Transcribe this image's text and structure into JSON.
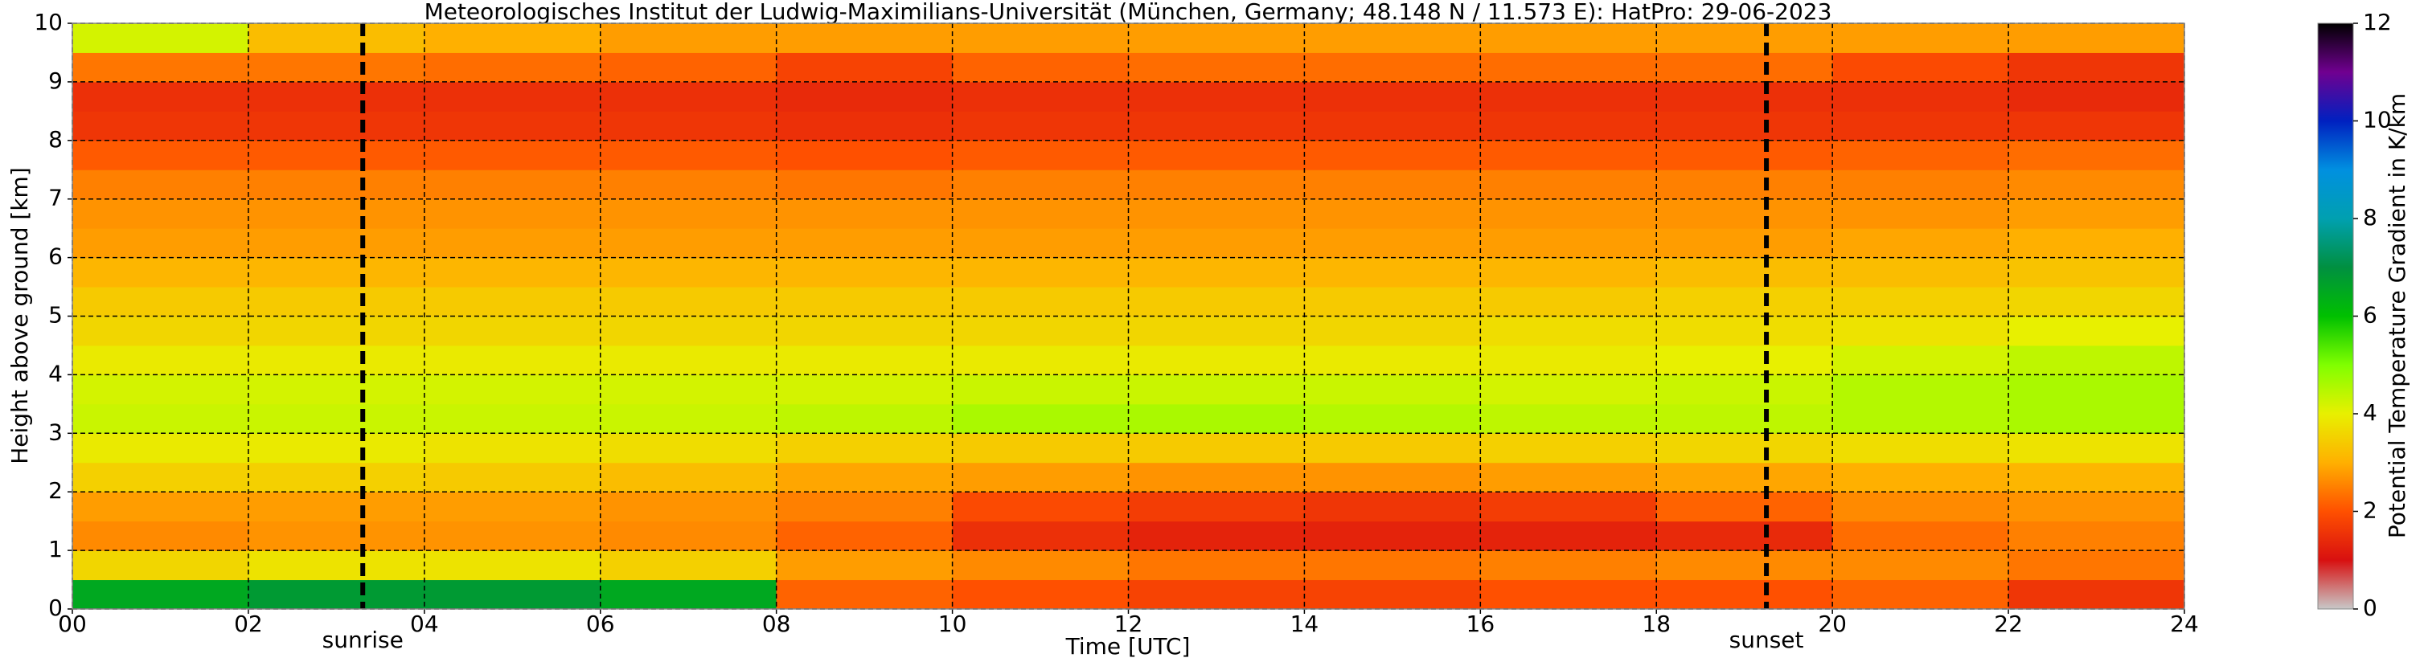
{
  "chart_data": {
    "type": "heatmap",
    "title": "Meteorologisches Institut der Ludwig-Maximilians-Universität (München, Germany; 48.148 N / 11.573 E):    HatPro: 29-06-2023",
    "xlabel": "Time [UTC]",
    "ylabel": "Height above ground [km]",
    "colorbar_label": "Potential Temperature Gradient in K/km",
    "x_edges": [
      0,
      2,
      4,
      6,
      8,
      10,
      12,
      14,
      16,
      18,
      20,
      22,
      24
    ],
    "y_edges": [
      0,
      0.5,
      1,
      1.5,
      2,
      2.5,
      3,
      3.5,
      4,
      4.5,
      5,
      5.5,
      6,
      6.5,
      7,
      7.5,
      8,
      8.5,
      9,
      9.5,
      10
    ],
    "z": [
      [
        6.5,
        6.8,
        6.8,
        6.5,
        2.2,
        2.0,
        1.8,
        1.8,
        2.0,
        2.0,
        2.2,
        1.6
      ],
      [
        3.6,
        3.8,
        3.8,
        3.5,
        2.8,
        2.6,
        2.4,
        2.4,
        2.5,
        2.6,
        2.6,
        2.4
      ],
      [
        2.6,
        2.7,
        2.7,
        2.6,
        2.2,
        1.5,
        1.3,
        1.3,
        1.3,
        1.4,
        2.3,
        2.5
      ],
      [
        2.8,
        2.8,
        2.8,
        2.7,
        2.5,
        1.9,
        1.7,
        1.6,
        1.7,
        2.2,
        2.6,
        2.7
      ],
      [
        3.5,
        3.5,
        3.4,
        3.2,
        2.9,
        2.8,
        2.7,
        2.7,
        2.8,
        2.9,
        3.0,
        3.1
      ],
      [
        3.9,
        3.9,
        3.8,
        3.7,
        3.5,
        3.4,
        3.4,
        3.4,
        3.5,
        3.6,
        3.7,
        3.8
      ],
      [
        4.3,
        4.3,
        4.3,
        4.3,
        4.4,
        4.6,
        4.6,
        4.5,
        4.4,
        4.4,
        4.5,
        4.6
      ],
      [
        4.2,
        4.2,
        4.2,
        4.2,
        4.2,
        4.3,
        4.3,
        4.3,
        4.2,
        4.3,
        4.5,
        4.6
      ],
      [
        3.9,
        3.9,
        3.9,
        3.9,
        3.9,
        3.9,
        3.9,
        3.9,
        3.9,
        4.0,
        4.2,
        4.4
      ],
      [
        3.6,
        3.6,
        3.6,
        3.6,
        3.6,
        3.6,
        3.6,
        3.6,
        3.7,
        3.7,
        3.8,
        4.0
      ],
      [
        3.4,
        3.4,
        3.4,
        3.4,
        3.4,
        3.4,
        3.4,
        3.4,
        3.4,
        3.5,
        3.5,
        3.6
      ],
      [
        3.1,
        3.1,
        3.1,
        3.1,
        3.1,
        3.1,
        3.1,
        3.1,
        3.1,
        3.2,
        3.2,
        3.3
      ],
      [
        2.8,
        2.8,
        2.8,
        2.8,
        2.8,
        2.8,
        2.8,
        2.8,
        2.8,
        2.8,
        2.9,
        3.0
      ],
      [
        2.7,
        2.7,
        2.7,
        2.7,
        2.7,
        2.7,
        2.7,
        2.7,
        2.7,
        2.7,
        2.7,
        2.8
      ],
      [
        2.5,
        2.5,
        2.5,
        2.5,
        2.4,
        2.5,
        2.5,
        2.5,
        2.5,
        2.5,
        2.5,
        2.6
      ],
      [
        2.1,
        2.1,
        2.1,
        2.1,
        2.0,
        2.1,
        2.1,
        2.1,
        2.1,
        2.1,
        2.2,
        2.3
      ],
      [
        1.6,
        1.6,
        1.6,
        1.6,
        1.5,
        1.6,
        1.6,
        1.6,
        1.6,
        1.6,
        1.6,
        1.6
      ],
      [
        1.5,
        1.5,
        1.5,
        1.5,
        1.4,
        1.5,
        1.5,
        1.5,
        1.5,
        1.5,
        1.5,
        1.4
      ],
      [
        2.4,
        2.4,
        2.3,
        2.2,
        1.8,
        2.2,
        2.3,
        2.3,
        2.3,
        2.3,
        1.9,
        1.6
      ],
      [
        4.2,
        3.2,
        3.0,
        2.8,
        2.8,
        2.8,
        2.8,
        2.8,
        2.8,
        2.8,
        2.8,
        2.8
      ]
    ],
    "xlim": [
      0,
      24
    ],
    "xticks": [
      {
        "value": 0,
        "label": "00"
      },
      {
        "value": 2,
        "label": "02"
      },
      {
        "value": 4,
        "label": "04"
      },
      {
        "value": 6,
        "label": "06"
      },
      {
        "value": 8,
        "label": "08"
      },
      10,
      12,
      14,
      16,
      18,
      20,
      22,
      24
    ],
    "ylim": [
      0,
      10
    ],
    "yticks": [
      0,
      1,
      2,
      3,
      4,
      5,
      6,
      7,
      8,
      9,
      10
    ],
    "clim": [
      0,
      12
    ],
    "cticks": [
      0,
      2,
      4,
      6,
      8,
      10,
      12
    ],
    "colorscale": [
      {
        "value": 0,
        "color": "#c8c8c8"
      },
      {
        "value": 1,
        "color": "#d81010"
      },
      {
        "value": 2,
        "color": "#ff5000"
      },
      {
        "value": 3,
        "color": "#ffb000"
      },
      {
        "value": 4,
        "color": "#e8f000"
      },
      {
        "value": 5,
        "color": "#80ff00"
      },
      {
        "value": 6,
        "color": "#00c000"
      },
      {
        "value": 7,
        "color": "#009040"
      },
      {
        "value": 8,
        "color": "#00a0b0"
      },
      {
        "value": 9,
        "color": "#0090e0"
      },
      {
        "value": 10,
        "color": "#0020c0"
      },
      {
        "value": 11,
        "color": "#700090"
      },
      {
        "value": 12,
        "color": "#000000"
      }
    ],
    "grid": true,
    "annotations": [
      {
        "label": "sunrise",
        "x": 3.3
      },
      {
        "label": "sunset",
        "x": 19.25
      }
    ]
  }
}
